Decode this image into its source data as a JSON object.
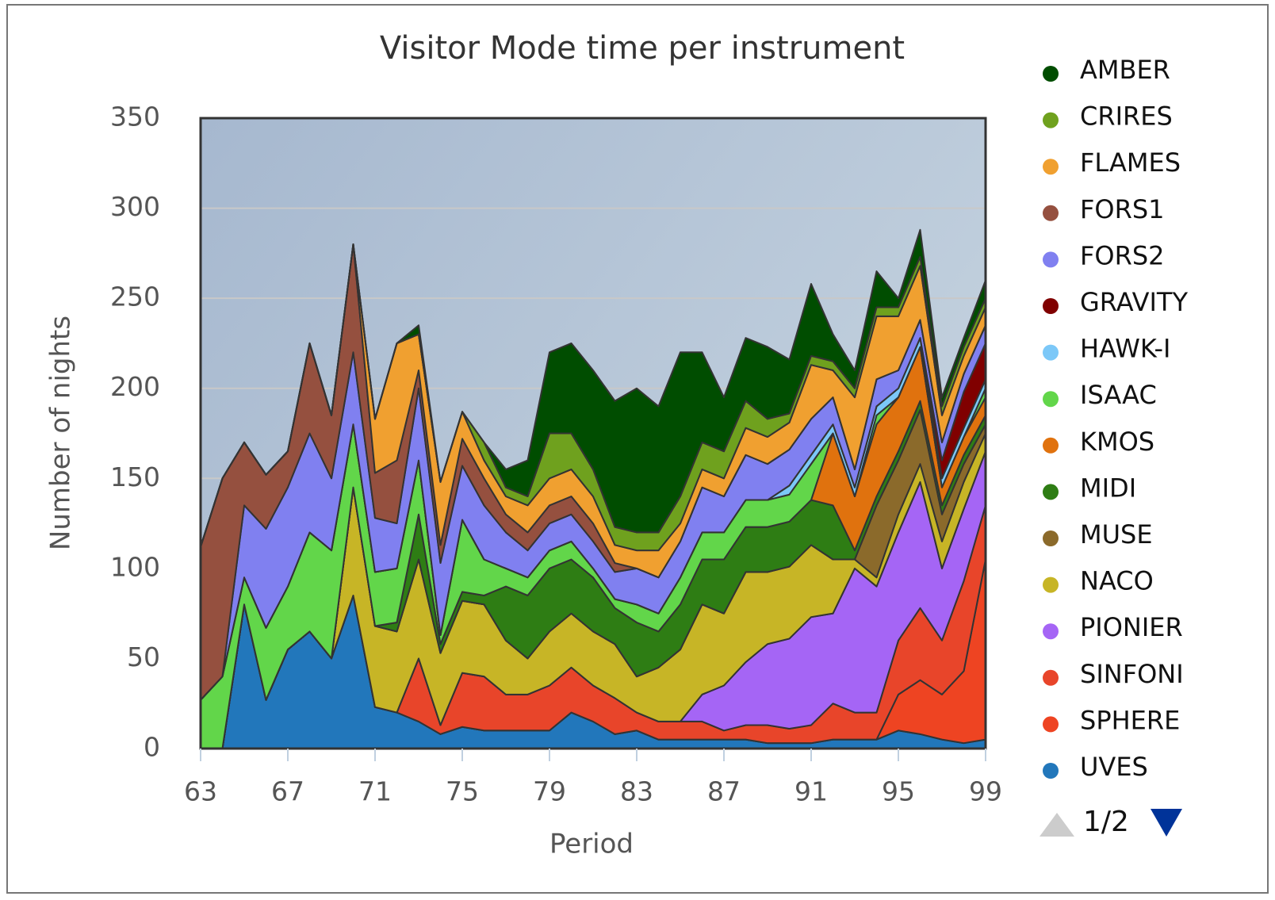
{
  "chart_data": {
    "type": "stacked-area",
    "title": "Visitor Mode time per instrument",
    "x_label": "Period",
    "y_label": "Number of nights",
    "x": [
      63,
      64,
      65,
      66,
      67,
      68,
      69,
      70,
      71,
      72,
      73,
      74,
      75,
      76,
      77,
      78,
      79,
      80,
      81,
      82,
      83,
      84,
      85,
      86,
      87,
      88,
      89,
      90,
      91,
      92,
      93,
      94,
      95,
      96,
      97,
      98,
      99
    ],
    "xlim": [
      63,
      99
    ],
    "xticks": [
      63,
      67,
      71,
      75,
      79,
      83,
      87,
      91,
      95,
      99
    ],
    "ylim": [
      0,
      350
    ],
    "yticks": [
      0,
      50,
      100,
      150,
      200,
      250,
      300,
      350
    ],
    "grid": true,
    "legend_position": "right",
    "legend_page": "1/2",
    "series": [
      {
        "name": "AMBER",
        "color": "#004d00",
        "values": [
          0,
          0,
          0,
          0,
          0,
          0,
          0,
          0,
          0,
          0,
          5,
          0,
          0,
          0,
          10,
          20,
          45,
          50,
          55,
          70,
          80,
          70,
          80,
          50,
          30,
          35,
          40,
          30,
          40,
          15,
          10,
          20,
          5,
          15,
          5,
          5,
          10
        ]
      },
      {
        "name": "CRIRES",
        "color": "#6fa11e",
        "values": [
          0,
          0,
          0,
          0,
          0,
          0,
          0,
          0,
          0,
          0,
          0,
          0,
          0,
          10,
          5,
          5,
          25,
          20,
          15,
          10,
          10,
          10,
          15,
          15,
          15,
          15,
          10,
          5,
          5,
          5,
          5,
          5,
          5,
          5,
          5,
          5,
          5
        ]
      },
      {
        "name": "FLAMES",
        "color": "#f0a030",
        "values": [
          0,
          0,
          0,
          0,
          0,
          0,
          0,
          0,
          30,
          65,
          20,
          35,
          15,
          10,
          10,
          15,
          15,
          15,
          15,
          10,
          10,
          15,
          10,
          10,
          10,
          15,
          15,
          15,
          30,
          15,
          40,
          35,
          30,
          30,
          15,
          10,
          10
        ]
      },
      {
        "name": "FORS1",
        "color": "#95503f",
        "values": [
          85,
          110,
          35,
          30,
          20,
          50,
          35,
          60,
          25,
          35,
          10,
          10,
          15,
          15,
          10,
          10,
          10,
          10,
          10,
          5,
          0,
          0,
          0,
          0,
          0,
          0,
          0,
          0,
          0,
          0,
          0,
          0,
          0,
          0,
          0,
          0,
          0
        ]
      },
      {
        "name": "FORS2",
        "color": "#8080f0",
        "values": [
          0,
          0,
          40,
          55,
          55,
          55,
          40,
          40,
          30,
          25,
          40,
          40,
          30,
          30,
          20,
          15,
          15,
          15,
          15,
          15,
          20,
          20,
          20,
          25,
          20,
          25,
          20,
          20,
          20,
          15,
          10,
          15,
          10,
          10,
          10,
          10,
          10
        ]
      },
      {
        "name": "GRAVITY",
        "color": "#800000",
        "values": [
          0,
          0,
          0,
          0,
          0,
          0,
          0,
          0,
          0,
          0,
          0,
          0,
          0,
          0,
          0,
          0,
          0,
          0,
          0,
          0,
          0,
          0,
          0,
          0,
          0,
          0,
          0,
          0,
          0,
          0,
          0,
          0,
          0,
          0,
          10,
          20,
          20
        ]
      },
      {
        "name": "HAWK-I",
        "color": "#7cc8f8",
        "values": [
          0,
          0,
          0,
          0,
          0,
          0,
          0,
          0,
          0,
          0,
          0,
          0,
          0,
          0,
          0,
          0,
          0,
          0,
          0,
          0,
          0,
          0,
          0,
          0,
          0,
          0,
          0,
          5,
          5,
          5,
          5,
          5,
          5,
          5,
          5,
          5,
          5
        ]
      },
      {
        "name": "ISAAC",
        "color": "#62d64a",
        "values": [
          27,
          40,
          15,
          40,
          35,
          55,
          60,
          35,
          30,
          30,
          30,
          5,
          40,
          20,
          10,
          10,
          10,
          10,
          5,
          5,
          10,
          10,
          15,
          15,
          15,
          15,
          15,
          15,
          20,
          0,
          0,
          5,
          0,
          0,
          0,
          0,
          5
        ]
      },
      {
        "name": "KMOS",
        "color": "#e0720e",
        "values": [
          0,
          0,
          0,
          0,
          0,
          0,
          0,
          0,
          0,
          0,
          0,
          0,
          0,
          0,
          0,
          0,
          0,
          0,
          0,
          0,
          0,
          0,
          0,
          0,
          0,
          0,
          0,
          0,
          0,
          40,
          30,
          40,
          30,
          30,
          10,
          10,
          10
        ]
      },
      {
        "name": "MIDI",
        "color": "#2e7d14",
        "values": [
          0,
          0,
          0,
          0,
          0,
          0,
          0,
          0,
          0,
          5,
          25,
          5,
          5,
          5,
          30,
          35,
          35,
          30,
          30,
          20,
          30,
          20,
          25,
          25,
          30,
          25,
          25,
          25,
          25,
          30,
          5,
          5,
          5,
          5,
          5,
          5,
          5
        ]
      },
      {
        "name": "MUSE",
        "color": "#8b6a2b",
        "values": [
          0,
          0,
          0,
          0,
          0,
          0,
          0,
          0,
          0,
          0,
          0,
          0,
          0,
          0,
          0,
          0,
          0,
          0,
          0,
          0,
          0,
          0,
          0,
          0,
          0,
          0,
          0,
          0,
          0,
          0,
          0,
          40,
          30,
          30,
          15,
          10,
          5
        ]
      },
      {
        "name": "NACO",
        "color": "#c7b526",
        "values": [
          0,
          0,
          0,
          0,
          0,
          0,
          0,
          60,
          45,
          45,
          55,
          40,
          40,
          40,
          30,
          20,
          30,
          30,
          30,
          30,
          20,
          30,
          40,
          50,
          40,
          50,
          40,
          40,
          40,
          30,
          5,
          5,
          10,
          10,
          15,
          15,
          10
        ]
      },
      {
        "name": "PIONIER",
        "color": "#a565f5",
        "values": [
          0,
          0,
          0,
          0,
          0,
          0,
          0,
          0,
          0,
          0,
          0,
          0,
          0,
          0,
          0,
          0,
          0,
          0,
          0,
          0,
          0,
          0,
          0,
          15,
          25,
          35,
          45,
          50,
          60,
          50,
          80,
          70,
          60,
          70,
          40,
          40,
          30
        ]
      },
      {
        "name": "SINFONI",
        "color": "#e8452a",
        "values": [
          0,
          0,
          0,
          0,
          0,
          0,
          0,
          0,
          0,
          0,
          35,
          5,
          30,
          30,
          20,
          20,
          25,
          25,
          20,
          20,
          10,
          10,
          10,
          10,
          5,
          8,
          10,
          8,
          10,
          20,
          15,
          15,
          30,
          40,
          30,
          50,
          30
        ]
      },
      {
        "name": "SPHERE",
        "color": "#ee4422",
        "values": [
          0,
          0,
          0,
          0,
          0,
          0,
          0,
          0,
          0,
          0,
          0,
          0,
          0,
          0,
          0,
          0,
          0,
          0,
          0,
          0,
          0,
          0,
          0,
          0,
          0,
          0,
          0,
          0,
          0,
          0,
          0,
          0,
          20,
          30,
          25,
          40,
          100
        ]
      },
      {
        "name": "UVES",
        "color": "#2277bb",
        "values": [
          0,
          0,
          80,
          27,
          55,
          65,
          50,
          85,
          23,
          20,
          15,
          8,
          12,
          10,
          10,
          10,
          10,
          20,
          15,
          8,
          10,
          5,
          5,
          5,
          5,
          5,
          3,
          3,
          3,
          5,
          5,
          5,
          10,
          8,
          5,
          3,
          5
        ]
      }
    ]
  }
}
